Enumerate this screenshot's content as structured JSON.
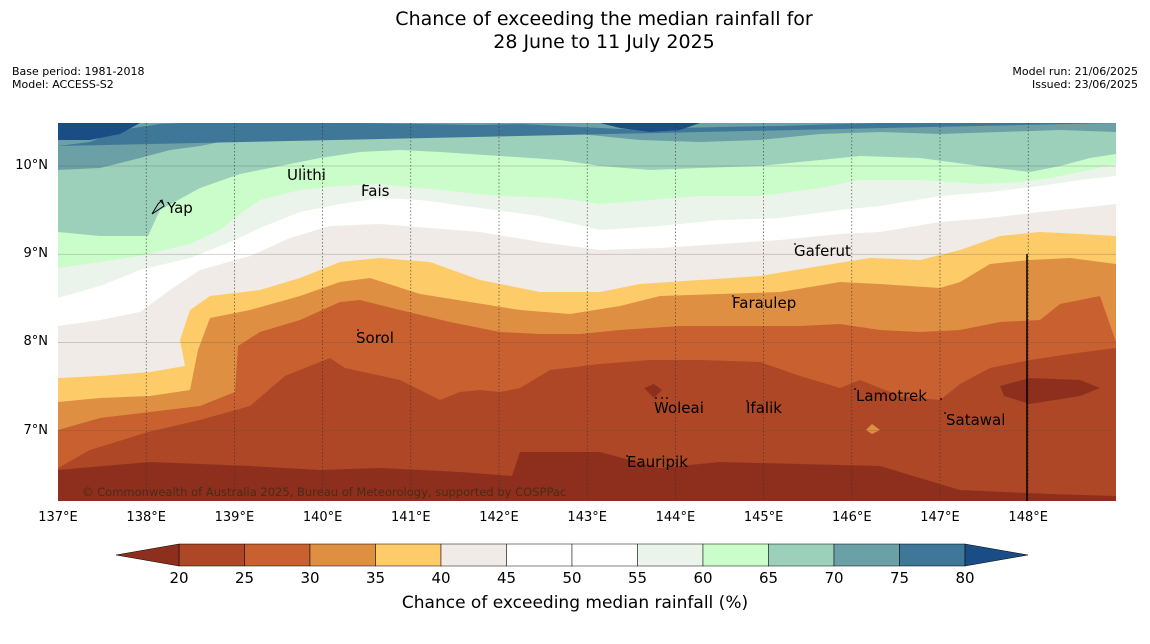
{
  "title": {
    "line1": "Chance of exceeding the median rainfall for",
    "line2": "28 June to 11 July 2025"
  },
  "meta": {
    "base_period": "Base period: 1981-2018",
    "model": "Model: ACCESS-S2",
    "model_run": "Model run: 21/06/2025",
    "issued": "Issued: 23/06/2025"
  },
  "axes": {
    "lon_labels": [
      "137°E",
      "138°E",
      "139°E",
      "140°E",
      "141°E",
      "142°E",
      "143°E",
      "144°E",
      "145°E",
      "146°E",
      "147°E",
      "148°E"
    ],
    "lat_labels": [
      "10°N",
      "9°N",
      "8°N",
      "7°N"
    ],
    "lon_range": [
      137,
      149
    ],
    "lat_range": [
      6.2,
      10.5
    ]
  },
  "places": [
    {
      "name": "Yap"
    },
    {
      "name": "Ulithi"
    },
    {
      "name": "Fais"
    },
    {
      "name": "Gaferut"
    },
    {
      "name": "Faraulep"
    },
    {
      "name": "Sorol"
    },
    {
      "name": "Lamotrek"
    },
    {
      "name": "Woleai"
    },
    {
      "name": "Ifalik"
    },
    {
      "name": "Satawal"
    },
    {
      "name": "Eauripik"
    }
  ],
  "copyright": "© Commonwealth of Australia 2025, Bureau of Meteorology, supported by COSPPac",
  "colorbar": {
    "ticks": [
      "20",
      "25",
      "30",
      "35",
      "40",
      "45",
      "50",
      "55",
      "60",
      "65",
      "70",
      "75",
      "80"
    ],
    "label": "Chance of exceeding median rainfall (%)",
    "colors": {
      "under_20": "#8e2f1d",
      "20_25": "#ad4726",
      "25_30": "#c9602f",
      "30_35": "#df8f42",
      "35_40": "#fdcb68",
      "40_45": "#f0ebe6",
      "45_50": "#ffffff",
      "50_55": "#ffffff",
      "55_60": "#ebf4ea",
      "60_65": "#cbfdca",
      "65_70": "#9cd0bb",
      "70_75": "#6aa0a6",
      "75_80": "#3f7799",
      "over_80": "#1a4d85"
    }
  }
}
